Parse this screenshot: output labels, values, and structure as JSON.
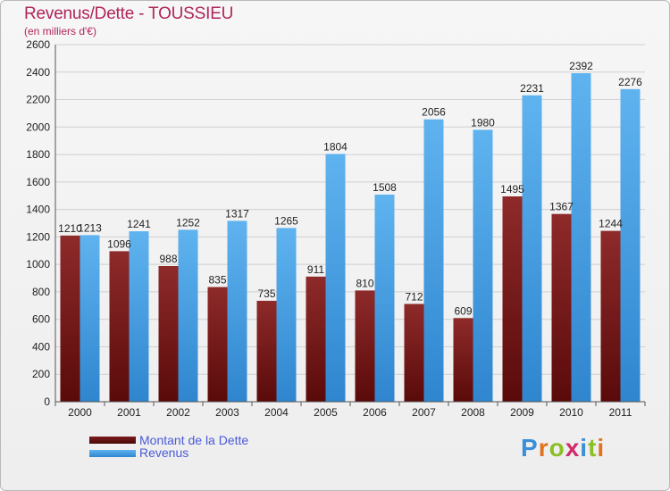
{
  "header": {
    "title": "Revenus/Dette - TOUSSIEU",
    "subtitle": "(en milliers d'€)"
  },
  "legend": {
    "dette_label": "Montant de la Dette",
    "revenus_label": "Revenus"
  },
  "logo": {
    "text": "Proxiti"
  },
  "colors": {
    "dette": "#7a1c1c",
    "revenus": "#4aa3e6",
    "title": "#b0245a",
    "legend_text": "#4a5ad8"
  },
  "chart_data": {
    "type": "bar",
    "title": "Revenus/Dette - TOUSSIEU",
    "ylabel": "(en milliers d'€)",
    "xlabel": "",
    "ylim": [
      0,
      2600
    ],
    "yticks": [
      0,
      200,
      400,
      600,
      800,
      1000,
      1200,
      1400,
      1600,
      1800,
      2000,
      2200,
      2400,
      2600
    ],
    "grid": true,
    "legend_position": "bottom-left",
    "categories": [
      "2000",
      "2001",
      "2002",
      "2003",
      "2004",
      "2005",
      "2006",
      "2007",
      "2008",
      "2009",
      "2010",
      "2011"
    ],
    "series": [
      {
        "name": "Montant de la Dette",
        "values": [
          1210,
          1096,
          988,
          835,
          735,
          911,
          810,
          712,
          609,
          1495,
          1367,
          1244
        ]
      },
      {
        "name": "Revenus",
        "values": [
          1213,
          1241,
          1252,
          1317,
          1265,
          1804,
          1508,
          2056,
          1980,
          2231,
          2392,
          2276
        ]
      }
    ]
  }
}
